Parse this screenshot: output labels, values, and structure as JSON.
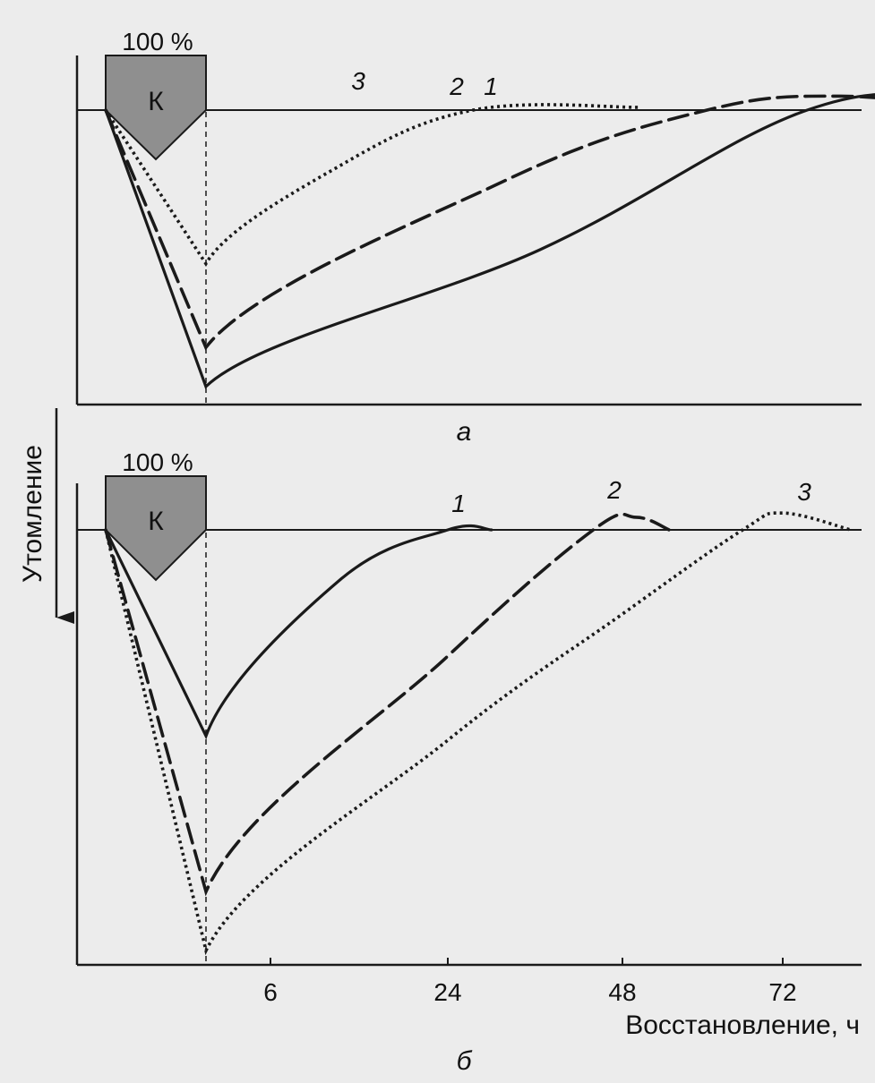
{
  "figure": {
    "panel_a_label": "а",
    "panel_b_label": "б",
    "y_axis_label": "Утомление",
    "x_axis_label": "Восстановление, ч",
    "load_box_label": "К",
    "load_box_caption": "100 %"
  },
  "colors": {
    "ink": "#1a1a1a",
    "load_box_fill": "#8f8f8f",
    "background": "#ececec"
  },
  "chart_data": [
    {
      "type": "line",
      "panel": "а",
      "title": "",
      "xlabel": "",
      "ylabel": "",
      "note": "baseline = full recovery level; fatigue plotted downward",
      "series": [
        {
          "name": "1",
          "style": "solid",
          "points": [
            {
              "x": 0,
              "y": 0
            },
            {
              "x": 3,
              "y": -0.99
            },
            {
              "x": 13,
              "y": -0.5
            },
            {
              "x": 21,
              "y": 0
            },
            {
              "x": 26,
              "y": 0.04
            },
            {
              "x": 33,
              "y": 0
            }
          ]
        },
        {
          "name": "2",
          "style": "dashed",
          "points": [
            {
              "x": 0,
              "y": 0
            },
            {
              "x": 3,
              "y": -0.85
            },
            {
              "x": 12,
              "y": -0.25
            },
            {
              "x": 18,
              "y": 0
            },
            {
              "x": 22,
              "y": 0.05
            },
            {
              "x": 26,
              "y": 0
            }
          ]
        },
        {
          "name": "3",
          "style": "dotted",
          "points": [
            {
              "x": 0,
              "y": 0
            },
            {
              "x": 3,
              "y": -0.55
            },
            {
              "x": 7,
              "y": -0.2
            },
            {
              "x": 11,
              "y": 0
            },
            {
              "x": 16,
              "y": 0.01
            }
          ]
        }
      ]
    },
    {
      "type": "line",
      "panel": "б",
      "title": "",
      "xlabel": "Восстановление, ч",
      "ylabel": "Утомление",
      "x_ticks": [
        "6",
        "24",
        "48",
        "72"
      ],
      "series": [
        {
          "name": "1",
          "style": "solid",
          "points": [
            {
              "x": 0,
              "y": 0
            },
            {
              "x": 3,
              "y": -0.49
            },
            {
              "x": 13,
              "y": -0.12
            },
            {
              "x": 24,
              "y": 0
            },
            {
              "x": 30,
              "y": 0
            }
          ]
        },
        {
          "name": "2",
          "style": "dashed",
          "points": [
            {
              "x": 0,
              "y": 0
            },
            {
              "x": 3,
              "y": -0.86
            },
            {
              "x": 24,
              "y": -0.3
            },
            {
              "x": 44,
              "y": 0
            },
            {
              "x": 50,
              "y": 0.03
            },
            {
              "x": 55,
              "y": 0
            }
          ]
        },
        {
          "name": "3",
          "style": "dotted",
          "points": [
            {
              "x": 0,
              "y": 0
            },
            {
              "x": 3,
              "y": -1.0
            },
            {
              "x": 24,
              "y": -0.5
            },
            {
              "x": 48,
              "y": -0.2
            },
            {
              "x": 66,
              "y": 0
            },
            {
              "x": 72,
              "y": 0.04
            },
            {
              "x": 80,
              "y": 0
            }
          ]
        }
      ]
    }
  ]
}
